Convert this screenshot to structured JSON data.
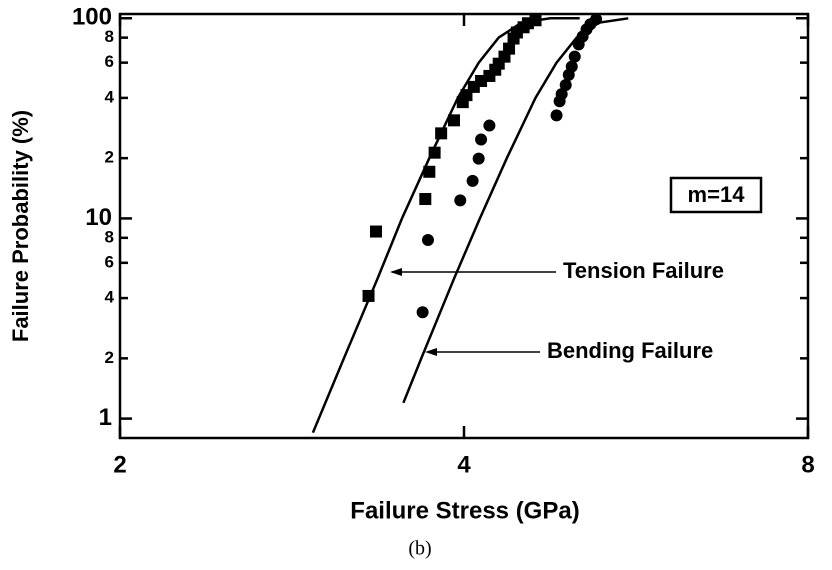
{
  "chart_data": {
    "type": "scatter",
    "x_label": "Failure Stress (GPa)",
    "y_label": "Failure Probability (%)",
    "caption": "(b)",
    "annotations": [
      {
        "text": "Tension Failure"
      },
      {
        "text": "Bending Failure"
      },
      {
        "text": "m=14"
      }
    ],
    "xscale": "log",
    "yscale": "log",
    "xlim": [
      2,
      8
    ],
    "ylim": [
      0.8,
      105
    ],
    "xticks": [
      2,
      4,
      8
    ],
    "yticks": [
      1,
      2,
      4,
      6,
      8,
      10,
      {
        "value": 20,
        "label": "2"
      },
      {
        "value": 40,
        "label": "4"
      },
      {
        "value": 60,
        "label": "6"
      },
      {
        "value": 80,
        "label": "8"
      },
      100
    ],
    "series": [
      {
        "marker": "square",
        "color": "#000000",
        "x": [
          3.3,
          3.35,
          3.7,
          3.73,
          3.77,
          3.82,
          3.92,
          3.99,
          4.02,
          4.08,
          4.14,
          4.21,
          4.26,
          4.29,
          4.34,
          4.38,
          4.42,
          4.45,
          4.51,
          4.55,
          4.62
        ],
        "values": [
          4.1,
          8.6,
          12.5,
          17.1,
          21.3,
          26.6,
          30.9,
          38.1,
          41.3,
          45.4,
          48.6,
          51.5,
          55.3,
          59.3,
          64.3,
          70.5,
          79.2,
          84.9,
          90.1,
          94.4,
          97.7
        ]
      },
      {
        "marker": "circle",
        "color": "#000000",
        "x": [
          3.68,
          3.72,
          3.97,
          4.07,
          4.12,
          4.14,
          4.21,
          4.82,
          4.85,
          4.87,
          4.91,
          4.94,
          4.97,
          5.0,
          5.04,
          5.08,
          5.12,
          5.16,
          5.22
        ],
        "values": [
          3.4,
          7.8,
          12.3,
          15.4,
          19.9,
          24.8,
          29.1,
          32.7,
          38.5,
          41.8,
          46.4,
          52.1,
          57.3,
          64.3,
          74.0,
          81.1,
          88.0,
          93.3,
          98.9
        ]
      },
      {
        "marker": "line",
        "color": "#000000",
        "x": [
          2.95,
          3.14,
          3.36,
          3.53,
          3.73,
          3.95,
          4.12,
          4.29,
          4.49,
          4.76,
          5.05
        ],
        "values": [
          0.85,
          2,
          5,
          10,
          20,
          40,
          60,
          80,
          95,
          99.9,
          99.9
        ]
      },
      {
        "marker": "line",
        "color": "#000000",
        "x": [
          3.54,
          3.67,
          3.92,
          4.13,
          4.36,
          4.62,
          4.82,
          5.02,
          5.25,
          5.57
        ],
        "values": [
          1.2,
          2,
          5,
          10,
          20,
          40,
          60,
          80,
          95,
          99.9
        ]
      }
    ]
  }
}
